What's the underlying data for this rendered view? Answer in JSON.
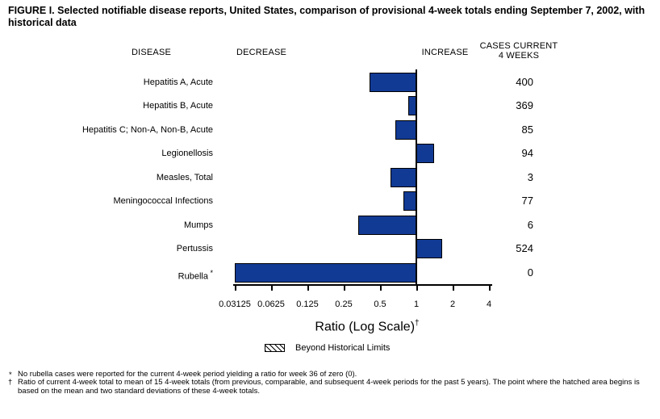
{
  "title": "FIGURE I. Selected notifiable disease reports, United States, comparison of provisional 4-week totals ending September 7, 2002, with historical data",
  "columns": {
    "disease": "DISEASE",
    "decrease": "DECREASE",
    "increase": "INCREASE",
    "cases_header": "CASES CURRENT\n4 WEEKS"
  },
  "chart_data": {
    "type": "bar",
    "orientation": "horizontal",
    "scale": "log2",
    "baseline_ratio": 1,
    "title": "Selected notifiable disease reports, ratio of current 4-week total to historical mean",
    "xlabel": "Ratio (Log Scale)",
    "xlabel_footnote_marker": "†",
    "axis": {
      "min": 0.03125,
      "max": 4,
      "ticks": [
        0.03125,
        0.0625,
        0.125,
        0.25,
        0.5,
        1,
        2,
        4
      ],
      "tick_labels": [
        "0.03125",
        "0.0625",
        "0.125",
        "0.25",
        "0.5",
        "1",
        "2",
        "4"
      ]
    },
    "rows": [
      {
        "disease": "Hepatitis A, Acute",
        "marker": "",
        "ratio": 0.41,
        "cases": "400"
      },
      {
        "disease": "Hepatitis B, Acute",
        "marker": "",
        "ratio": 0.86,
        "cases": "369"
      },
      {
        "disease": "Hepatitis C; Non-A, Non-B, Acute",
        "marker": "",
        "ratio": 0.67,
        "cases": "85"
      },
      {
        "disease": "Legionellosis",
        "marker": "",
        "ratio": 1.41,
        "cases": "94"
      },
      {
        "disease": "Measles, Total",
        "marker": "",
        "ratio": 0.61,
        "cases": "3"
      },
      {
        "disease": "Meningococcal Infections",
        "marker": "",
        "ratio": 0.78,
        "cases": "77"
      },
      {
        "disease": "Mumps",
        "marker": "",
        "ratio": 0.33,
        "cases": "6"
      },
      {
        "disease": "Pertussis",
        "marker": "",
        "ratio": 1.63,
        "cases": "524"
      },
      {
        "disease": "Rubella",
        "marker": "*",
        "ratio": 0,
        "cases": "0"
      }
    ],
    "legend": {
      "label": "Beyond Historical Limits",
      "swatch": "diagonal-hatch"
    },
    "colors": {
      "bar_fill": "#113a94",
      "bar_border": "#000000",
      "axis": "#000000"
    }
  },
  "footnotes": [
    {
      "marker": "*",
      "text": "No rubella cases were reported for the current 4-week period yielding a ratio for week 36 of zero (0)."
    },
    {
      "marker": "†",
      "text": "Ratio of current 4-week total to mean of 15 4-week totals (from previous, comparable, and subsequent 4-week periods for the past 5 years). The point where the hatched area begins is based on the mean and two standard deviations of these 4-week totals."
    }
  ]
}
